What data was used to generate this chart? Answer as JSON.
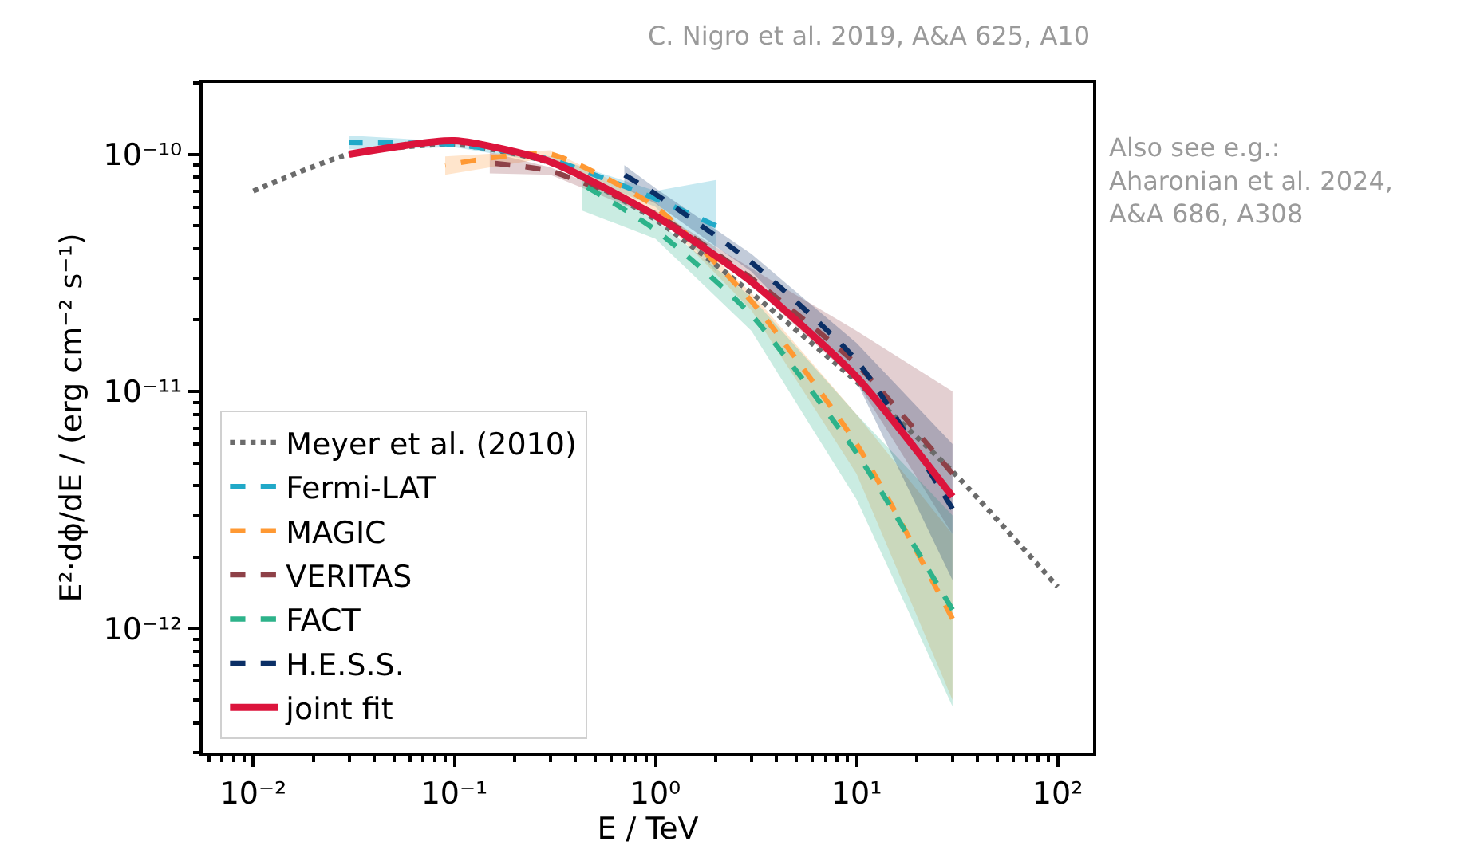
{
  "chart_data": {
    "type": "line",
    "xlabel": "E / TeV",
    "ylabel": "E²·dϕ/dE / (erg cm⁻² s⁻¹)",
    "annotations": [
      "C. Nigro et al. 2019, A&A 625, A10",
      "Also see e.g.:\nAharonian et al. 2024,\nA&A 686, A308"
    ],
    "log": "xy",
    "xlim": [
      0.0056,
      150
    ],
    "ylim": [
      3e-13,
      2e-10
    ],
    "xticks": [
      {
        "value": 0.01,
        "label": "10⁻²"
      },
      {
        "value": 0.1,
        "label": "10⁻¹"
      },
      {
        "value": 1,
        "label": "10⁰"
      },
      {
        "value": 10,
        "label": "10¹"
      },
      {
        "value": 100,
        "label": "10²"
      }
    ],
    "yticks": [
      {
        "value": 1e-12,
        "label": "10⁻¹²"
      },
      {
        "value": 1e-11,
        "label": "10⁻¹¹"
      },
      {
        "value": 1e-10,
        "label": "10⁻¹⁰"
      }
    ],
    "grid": false,
    "legend": "bottom left",
    "series": [
      {
        "name": "Meyer et al. (2010)",
        "color": "#6b6b6b",
        "line_style": "dotted",
        "x": [
          0.01,
          0.03,
          0.1,
          0.3,
          1,
          3,
          10,
          30,
          100
        ],
        "values": [
          7e-11,
          1e-10,
          1.1e-10,
          9.2e-11,
          5.3e-11,
          2.6e-11,
          1.1e-11,
          4.6e-12,
          1.5e-12
        ]
      },
      {
        "name": "Fermi-LAT",
        "color": "#21a9c8",
        "line_style": "dashed",
        "x": [
          0.03,
          0.1,
          0.3,
          1,
          2
        ],
        "values": [
          1.12e-10,
          1.1e-10,
          9.5e-11,
          6.5e-11,
          5e-11
        ],
        "lower": [
          1.05e-10,
          1.07e-10,
          9.2e-11,
          6e-11,
          3.2e-11
        ],
        "upper": [
          1.2e-10,
          1.13e-10,
          9.8e-11,
          7e-11,
          7.8e-11
        ]
      },
      {
        "name": "MAGIC",
        "color": "#ff9933",
        "line_style": "dashed",
        "x": [
          0.09,
          0.3,
          1,
          3,
          10,
          30
        ],
        "values": [
          9e-11,
          1e-10,
          6e-11,
          2.4e-11,
          6e-12,
          1.1e-12
        ],
        "lower": [
          8.2e-11,
          9.7e-11,
          5.7e-11,
          2.2e-11,
          4.5e-12,
          5e-13
        ],
        "upper": [
          9.8e-11,
          1.04e-10,
          6.3e-11,
          2.6e-11,
          8e-12,
          2.5e-12
        ]
      },
      {
        "name": "VERITAS",
        "color": "#8e4148",
        "line_style": "dashed",
        "x": [
          0.15,
          0.3,
          1,
          3,
          10,
          30
        ],
        "values": [
          9.2e-11,
          8.5e-11,
          5.6e-11,
          3e-11,
          1.3e-11,
          4.5e-12
        ],
        "lower": [
          8.3e-11,
          8.2e-11,
          5.4e-11,
          2.8e-11,
          1.1e-11,
          2.5e-12
        ],
        "upper": [
          1.02e-10,
          8.8e-11,
          5.8e-11,
          3.3e-11,
          1.8e-11,
          1e-11
        ]
      },
      {
        "name": "FACT",
        "color": "#2db38a",
        "line_style": "dashed",
        "x": [
          0.43,
          1,
          3,
          10,
          30
        ],
        "values": [
          7.5e-11,
          4.8e-11,
          2.1e-11,
          5.5e-12,
          1.2e-12
        ],
        "lower": [
          5.8e-11,
          4.4e-11,
          1.8e-11,
          3.5e-12,
          4.7e-13
        ],
        "upper": [
          8.2e-11,
          5.3e-11,
          2.5e-11,
          8e-12,
          3e-12
        ]
      },
      {
        "name": "H.E.S.S.",
        "color": "#0b2f66",
        "line_style": "dashed",
        "x": [
          0.7,
          1,
          3,
          10,
          30
        ],
        "values": [
          8.2e-11,
          6.8e-11,
          3.5e-11,
          1.35e-11,
          3.2e-12
        ],
        "lower": [
          7.2e-11,
          6.2e-11,
          3.2e-11,
          1.1e-11,
          1.6e-12
        ],
        "upper": [
          9e-11,
          7.2e-11,
          3.8e-11,
          1.6e-11,
          6e-12
        ]
      },
      {
        "name": "joint fit",
        "color": "#dc143c",
        "line_style": "solid",
        "x": [
          0.03,
          0.1,
          0.3,
          1,
          3,
          10,
          30
        ],
        "values": [
          1e-10,
          1.14e-10,
          9.3e-11,
          5.5e-11,
          2.9e-11,
          1.15e-11,
          3.6e-12
        ]
      }
    ]
  }
}
